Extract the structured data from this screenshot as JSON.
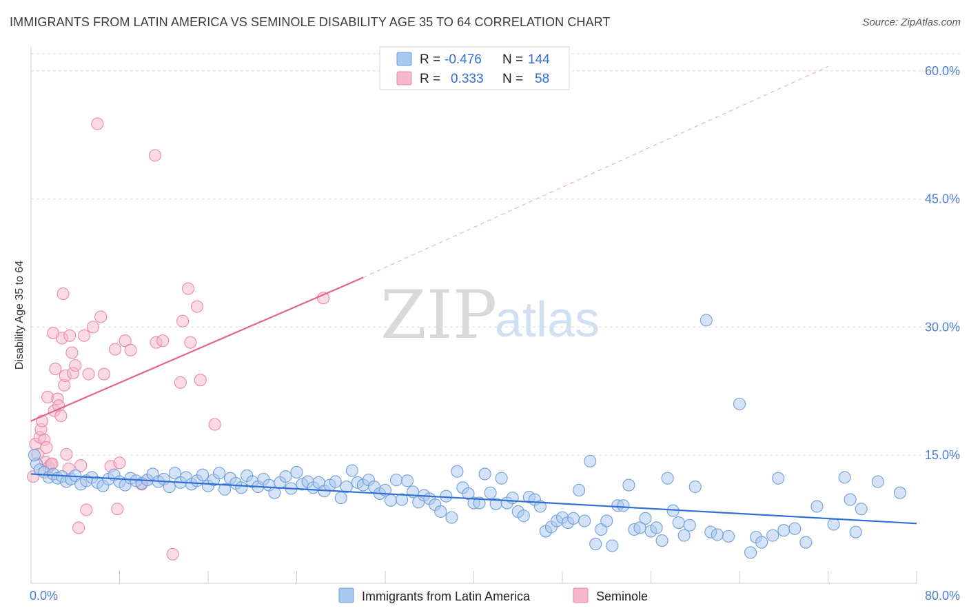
{
  "header": {
    "title": "IMMIGRANTS FROM LATIN AMERICA VS SEMINOLE DISABILITY AGE 35 TO 64 CORRELATION CHART",
    "source": "Source: ZipAtlas.com"
  },
  "watermark": {
    "zip": "ZIP",
    "atlas": "atlas"
  },
  "colors": {
    "blue_fill": "#a9c8ef",
    "blue_stroke": "#6f9fd8",
    "blue_line": "#2f6fd6",
    "pink_fill": "#f5b8cb",
    "pink_stroke": "#e98aa8",
    "pink_line": "#e4628d",
    "tick_text": "#4a7fd1",
    "grid": "#dddddd"
  },
  "legend": {
    "rows": [
      {
        "r_label": "R =",
        "r_value": "-0.476",
        "n_label": "N =",
        "n_value": "144",
        "color": "blue"
      },
      {
        "r_label": "R =",
        "r_value": "0.333",
        "n_label": "N =",
        "n_value": "58",
        "color": "pink"
      }
    ]
  },
  "chart_data": {
    "type": "scatter",
    "title": "IMMIGRANTS FROM LATIN AMERICA VS SEMINOLE DISABILITY AGE 35 TO 64 CORRELATION CHART",
    "xlabel": "",
    "ylabel": "Disability Age 35 to 64",
    "xlim": [
      0,
      80
    ],
    "ylim": [
      0,
      62
    ],
    "x_tick_labels": [
      "0.0%",
      "80.0%"
    ],
    "y_ticks": [
      15,
      30,
      45,
      60
    ],
    "y_tick_labels": [
      "15.0%",
      "30.0%",
      "45.0%",
      "60.0%"
    ],
    "grid": true,
    "legend_position": "top-center",
    "series": [
      {
        "name": "Immigrants from Latin America",
        "color": "blue",
        "trend": {
          "x": [
            0,
            80
          ],
          "y": [
            12.8,
            7.0
          ],
          "dashed_extension": false
        },
        "points": [
          [
            0.5,
            14.0
          ],
          [
            0.8,
            13.3
          ],
          [
            1.2,
            13.0
          ],
          [
            1.6,
            12.4
          ],
          [
            2.0,
            12.8
          ],
          [
            2.4,
            12.3
          ],
          [
            2.8,
            12.5
          ],
          [
            3.2,
            11.9
          ],
          [
            3.6,
            12.2
          ],
          [
            4.0,
            12.6
          ],
          [
            4.5,
            11.6
          ],
          [
            5.0,
            12.0
          ],
          [
            5.5,
            12.4
          ],
          [
            6.0,
            11.8
          ],
          [
            6.5,
            11.4
          ],
          [
            7.0,
            12.2
          ],
          [
            7.5,
            12.7
          ],
          [
            8.0,
            11.9
          ],
          [
            8.5,
            11.5
          ],
          [
            9.0,
            12.3
          ],
          [
            9.5,
            12.0
          ],
          [
            10.0,
            11.7
          ],
          [
            10.5,
            12.1
          ],
          [
            11.0,
            12.8
          ],
          [
            11.5,
            11.9
          ],
          [
            12.0,
            12.2
          ],
          [
            12.5,
            11.3
          ],
          [
            13.0,
            12.9
          ],
          [
            13.5,
            11.8
          ],
          [
            14.0,
            12.4
          ],
          [
            14.5,
            11.6
          ],
          [
            15.0,
            12.0
          ],
          [
            15.5,
            12.7
          ],
          [
            16.0,
            11.4
          ],
          [
            16.5,
            12.1
          ],
          [
            17.0,
            12.9
          ],
          [
            17.5,
            11.0
          ],
          [
            18.0,
            12.3
          ],
          [
            18.5,
            11.7
          ],
          [
            19.0,
            11.2
          ],
          [
            19.5,
            12.6
          ],
          [
            20.0,
            11.9
          ],
          [
            20.5,
            11.3
          ],
          [
            21.0,
            12.2
          ],
          [
            21.5,
            11.5
          ],
          [
            22.0,
            10.6
          ],
          [
            22.5,
            11.8
          ],
          [
            23.0,
            12.5
          ],
          [
            23.5,
            11.1
          ],
          [
            24.0,
            13.0
          ],
          [
            24.5,
            11.6
          ],
          [
            25.0,
            11.9
          ],
          [
            25.5,
            11.2
          ],
          [
            26.0,
            11.8
          ],
          [
            26.5,
            10.8
          ],
          [
            27.0,
            11.5
          ],
          [
            27.5,
            11.9
          ],
          [
            28.0,
            10.0
          ],
          [
            28.5,
            11.3
          ],
          [
            29.0,
            13.2
          ],
          [
            29.5,
            11.8
          ],
          [
            30.0,
            11.5
          ],
          [
            30.5,
            12.1
          ],
          [
            31.0,
            11.3
          ],
          [
            31.5,
            10.5
          ],
          [
            32.0,
            10.9
          ],
          [
            32.5,
            9.7
          ],
          [
            33.0,
            12.1
          ],
          [
            33.5,
            9.8
          ],
          [
            34.0,
            12.0
          ],
          [
            34.5,
            10.7
          ],
          [
            35.0,
            9.5
          ],
          [
            35.5,
            10.3
          ],
          [
            36.0,
            9.9
          ],
          [
            36.5,
            9.2
          ],
          [
            37.0,
            8.4
          ],
          [
            37.5,
            10.2
          ],
          [
            38.0,
            7.7
          ],
          [
            38.5,
            13.1
          ],
          [
            39.0,
            11.2
          ],
          [
            39.5,
            10.5
          ],
          [
            40.0,
            9.4
          ],
          [
            40.5,
            9.4
          ],
          [
            41.0,
            12.8
          ],
          [
            41.5,
            10.6
          ],
          [
            42.0,
            9.3
          ],
          [
            42.5,
            12.3
          ],
          [
            43.0,
            9.4
          ],
          [
            43.5,
            10.0
          ],
          [
            44.0,
            8.4
          ],
          [
            44.5,
            7.9
          ],
          [
            45.0,
            10.1
          ],
          [
            45.5,
            9.8
          ],
          [
            46.0,
            9.0
          ],
          [
            46.5,
            6.1
          ],
          [
            47.0,
            6.6
          ],
          [
            47.5,
            7.3
          ],
          [
            48.0,
            7.7
          ],
          [
            48.5,
            7.1
          ],
          [
            49.0,
            7.6
          ],
          [
            49.5,
            10.9
          ],
          [
            50.0,
            7.3
          ],
          [
            50.5,
            14.3
          ],
          [
            51.0,
            4.6
          ],
          [
            51.5,
            6.3
          ],
          [
            52.0,
            7.3
          ],
          [
            52.5,
            4.4
          ],
          [
            53.0,
            9.1
          ],
          [
            53.5,
            9.1
          ],
          [
            54.0,
            11.5
          ],
          [
            54.5,
            6.3
          ],
          [
            55.0,
            6.5
          ],
          [
            55.5,
            7.6
          ],
          [
            56.0,
            6.1
          ],
          [
            56.5,
            6.5
          ],
          [
            57.0,
            5.0
          ],
          [
            57.5,
            12.3
          ],
          [
            58.0,
            8.5
          ],
          [
            58.5,
            7.1
          ],
          [
            59.0,
            5.6
          ],
          [
            59.5,
            6.8
          ],
          [
            60.0,
            11.3
          ],
          [
            61.0,
            30.8
          ],
          [
            61.4,
            6.0
          ],
          [
            62.0,
            5.7
          ],
          [
            63.0,
            5.5
          ],
          [
            64.0,
            21.0
          ],
          [
            65.0,
            3.6
          ],
          [
            65.5,
            5.4
          ],
          [
            66.0,
            4.8
          ],
          [
            67.0,
            5.6
          ],
          [
            67.5,
            12.3
          ],
          [
            68.0,
            6.2
          ],
          [
            69.0,
            6.4
          ],
          [
            70.0,
            4.8
          ],
          [
            71.0,
            9.0
          ],
          [
            72.5,
            6.9
          ],
          [
            73.5,
            12.4
          ],
          [
            74.0,
            9.8
          ],
          [
            74.5,
            6.0
          ],
          [
            75.0,
            8.7
          ],
          [
            76.5,
            11.9
          ],
          [
            78.5,
            10.6
          ],
          [
            0.3,
            15.0
          ]
        ]
      },
      {
        "name": "Seminole",
        "color": "pink",
        "trend": {
          "x": [
            0,
            30
          ],
          "y": [
            19.0,
            35.8
          ],
          "dashed_extension": true,
          "dashed_to_x": 72,
          "dashed_to_y": 60.5
        },
        "points": [
          [
            0.2,
            12.5
          ],
          [
            0.4,
            16.3
          ],
          [
            0.6,
            15.1
          ],
          [
            0.8,
            17.1
          ],
          [
            0.9,
            18.0
          ],
          [
            1.0,
            19.0
          ],
          [
            1.2,
            16.8
          ],
          [
            1.3,
            14.2
          ],
          [
            1.4,
            15.9
          ],
          [
            1.5,
            21.8
          ],
          [
            1.6,
            13.6
          ],
          [
            1.8,
            13.9
          ],
          [
            2.0,
            29.3
          ],
          [
            2.1,
            20.2
          ],
          [
            2.2,
            25.1
          ],
          [
            2.4,
            21.6
          ],
          [
            2.5,
            20.8
          ],
          [
            2.7,
            19.6
          ],
          [
            2.8,
            28.7
          ],
          [
            2.9,
            33.9
          ],
          [
            3.0,
            23.2
          ],
          [
            3.1,
            24.3
          ],
          [
            3.2,
            15.1
          ],
          [
            3.4,
            13.4
          ],
          [
            3.5,
            29.0
          ],
          [
            3.7,
            27.0
          ],
          [
            3.8,
            24.6
          ],
          [
            4.0,
            25.5
          ],
          [
            4.3,
            6.5
          ],
          [
            4.5,
            13.8
          ],
          [
            4.8,
            29.0
          ],
          [
            5.0,
            8.6
          ],
          [
            5.2,
            24.5
          ],
          [
            5.6,
            30.0
          ],
          [
            6.0,
            53.8
          ],
          [
            6.3,
            31.2
          ],
          [
            6.6,
            24.5
          ],
          [
            7.2,
            13.7
          ],
          [
            7.6,
            27.4
          ],
          [
            7.8,
            8.7
          ],
          [
            8.0,
            14.1
          ],
          [
            8.5,
            28.4
          ],
          [
            9.0,
            27.3
          ],
          [
            10.0,
            11.6
          ],
          [
            10.5,
            12.1
          ],
          [
            11.2,
            50.1
          ],
          [
            11.3,
            28.2
          ],
          [
            11.9,
            28.4
          ],
          [
            12.8,
            3.4
          ],
          [
            13.5,
            23.5
          ],
          [
            13.7,
            30.7
          ],
          [
            14.2,
            34.5
          ],
          [
            14.4,
            28.2
          ],
          [
            15.3,
            23.8
          ],
          [
            15.0,
            32.4
          ],
          [
            16.6,
            18.6
          ],
          [
            26.4,
            33.4
          ],
          [
            1.9,
            14.0
          ]
        ]
      }
    ]
  },
  "bottom_legend": {
    "items": [
      {
        "label": "Immigrants from Latin America",
        "color": "blue"
      },
      {
        "label": "Seminole",
        "color": "pink"
      }
    ]
  }
}
